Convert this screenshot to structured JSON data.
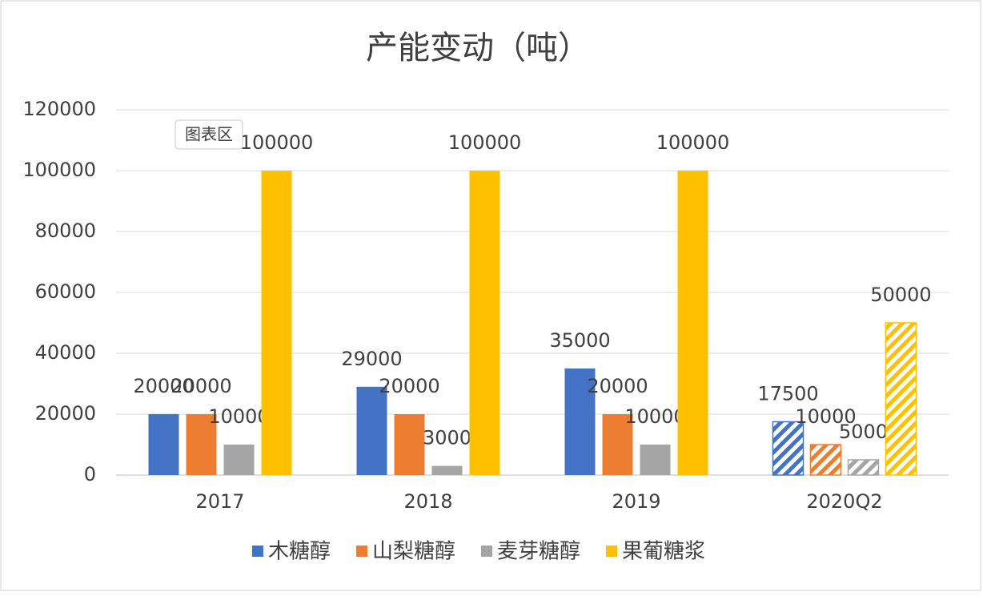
{
  "chart_data": {
    "type": "bar",
    "title": "产能变动（吨）",
    "tooltip": "图表区",
    "categories": [
      "2017",
      "2018",
      "2019",
      "2020Q2"
    ],
    "hatch": [
      false,
      false,
      false,
      true
    ],
    "series": [
      {
        "name": "木糖醇",
        "color": "#4472c4",
        "values": [
          20000,
          29000,
          35000,
          17500
        ]
      },
      {
        "name": "山梨糖醇",
        "color": "#ed7d31",
        "values": [
          20000,
          20000,
          20000,
          10000
        ]
      },
      {
        "name": "麦芽糖醇",
        "color": "#a5a5a5",
        "values": [
          10000,
          3000,
          10000,
          5000
        ]
      },
      {
        "name": "果葡糖浆",
        "color": "#ffc000",
        "values": [
          100000,
          100000,
          100000,
          50000
        ]
      }
    ],
    "ylim": [
      0,
      120000
    ],
    "yticks": [
      0,
      20000,
      40000,
      60000,
      80000,
      100000,
      120000
    ],
    "grid": true,
    "legend": "bottom"
  }
}
